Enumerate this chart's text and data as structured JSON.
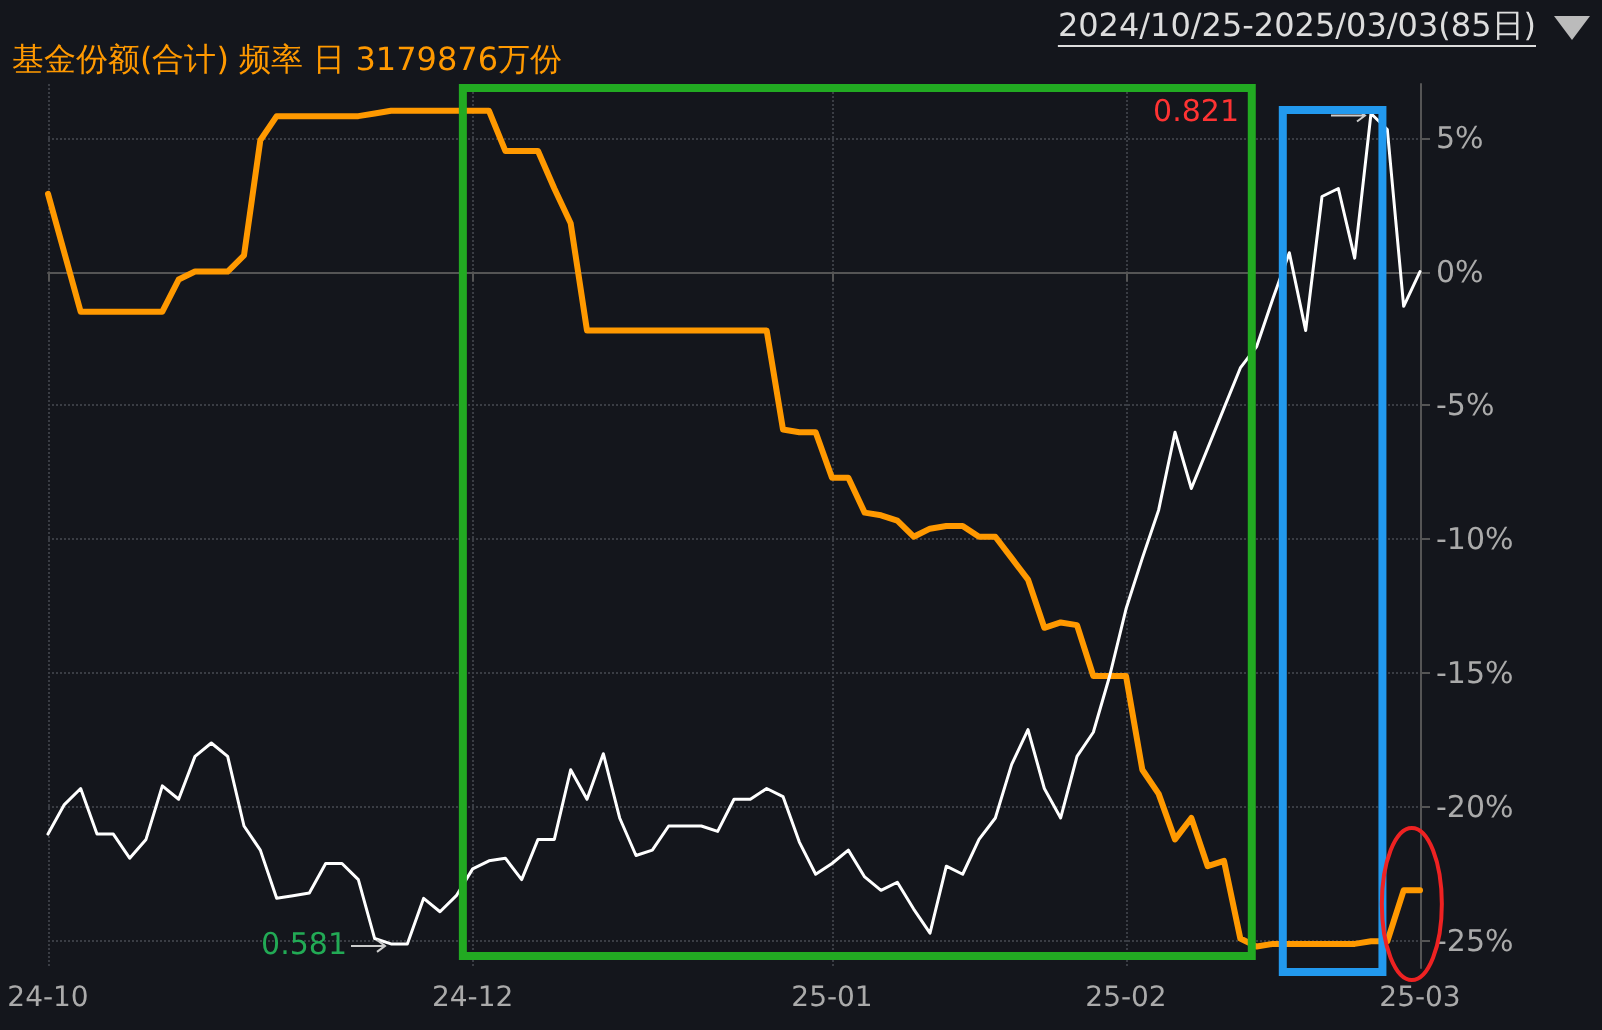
{
  "chart_data": {
    "type": "line",
    "title": "基金份额(合计) 频率 日 3179876万份",
    "subtitle": "2024/10/25-2025/03/03(85日)",
    "categories": [
      "24-10",
      null,
      null,
      null,
      null,
      null,
      null,
      null,
      null,
      null,
      null,
      null,
      null,
      null,
      null,
      null,
      null,
      null,
      null,
      null,
      null,
      null,
      null,
      null,
      null,
      null,
      "24-12",
      null,
      null,
      null,
      null,
      null,
      null,
      null,
      null,
      null,
      null,
      null,
      null,
      null,
      null,
      null,
      null,
      null,
      null,
      null,
      null,
      null,
      "25-01",
      null,
      null,
      null,
      null,
      null,
      null,
      null,
      null,
      null,
      null,
      null,
      null,
      null,
      null,
      null,
      null,
      null,
      "25-02",
      null,
      null,
      null,
      null,
      null,
      null,
      null,
      null,
      null,
      null,
      null,
      null,
      null,
      null,
      null,
      null,
      null,
      "25-03"
    ],
    "series": [
      {
        "color": "#ffffff",
        "values": [
          -21,
          -19.9,
          -19.3,
          -21,
          -21,
          -21.9,
          -21.2,
          -19.2,
          -19.7,
          -18.1,
          -17.6,
          -18.1,
          -20.7,
          -21.6,
          -23.4,
          -23.3,
          -23.2,
          -22.1,
          -22.1,
          -22.7,
          -24.9,
          -25.1,
          -25.1,
          -23.4,
          -23.9,
          -23.3,
          -22.3,
          -22,
          -21.9,
          -22.7,
          -21.2,
          -21.2,
          -18.6,
          -19.7,
          -18,
          -20.4,
          -21.8,
          -21.6,
          -20.7,
          -20.7,
          -20.7,
          -20.9,
          -19.7,
          -19.7,
          -19.3,
          -19.6,
          -21.3,
          -22.5,
          -22.1,
          -21.6,
          -22.6,
          -23.1,
          -22.8,
          -23.8,
          -24.7,
          -22.2,
          -22.5,
          -21.2,
          -20.4,
          -18.4,
          -17.1,
          -19.3,
          -20.4,
          -18.1,
          -17.2,
          -15.1,
          -12.6,
          -10.7,
          -8.9,
          -6,
          -8.1,
          -6.6,
          -5.1,
          -3.6,
          -2.8,
          -1,
          0.7,
          -2.2,
          2.8,
          3.1,
          0.5,
          5.9,
          5.3,
          -1.3,
          0
        ]
      },
      {
        "color": "#ff9900",
        "values": [
          2.9,
          0.7,
          -1.5,
          -1.5,
          -1.5,
          -1.5,
          -1.5,
          -1.5,
          -0.3,
          0,
          0,
          0,
          0.6,
          4.9,
          5.8,
          5.8,
          5.8,
          5.8,
          5.8,
          5.8,
          5.9,
          6,
          6,
          6,
          6,
          6,
          6,
          6,
          4.5,
          4.5,
          4.5,
          3.1,
          1.8,
          -2.2,
          -2.2,
          -2.2,
          -2.2,
          -2.2,
          -2.2,
          -2.2,
          -2.2,
          -2.2,
          -2.2,
          -2.2,
          -2.2,
          -5.9,
          -6,
          -6,
          -7.7,
          -7.7,
          -9,
          -9.1,
          -9.3,
          -9.9,
          -9.6,
          -9.5,
          -9.5,
          -9.9,
          -9.9,
          -10.7,
          -11.5,
          -13.3,
          -13.1,
          -13.2,
          -15.1,
          -15.1,
          -15.1,
          -18.6,
          -19.5,
          -21.2,
          -20.4,
          -22.2,
          -22,
          -24.9,
          -25.2,
          -25.1,
          -25.1,
          -25.1,
          -25.1,
          -25.1,
          -25.1,
          -25,
          -25,
          -23.1,
          -23.1
        ]
      }
    ],
    "ylim": [
      -26,
      7
    ],
    "yticks": [
      {
        "value": 5,
        "label": "5%"
      },
      {
        "value": 0,
        "label": "0%"
      },
      {
        "value": -5,
        "label": "-5%"
      },
      {
        "value": -10,
        "label": "-10%"
      },
      {
        "value": -15,
        "label": "-15%"
      },
      {
        "value": -20,
        "label": "-20%"
      },
      {
        "value": -25,
        "label": "-25%"
      }
    ],
    "annotations": [
      "0.821",
      "0.581"
    ],
    "grid": true,
    "marker": "none",
    "line_style": "solid"
  }
}
